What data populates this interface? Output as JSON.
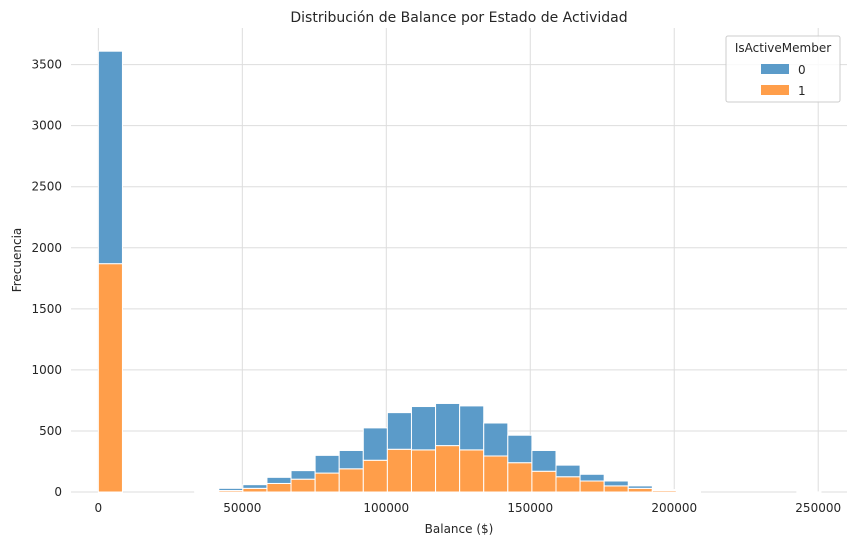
{
  "chart_data": {
    "type": "bar",
    "subtype": "stacked-histogram",
    "title": "Distribución de Balance por Estado de Actividad",
    "xlabel": "Balance ($)",
    "ylabel": "Frecuencia",
    "xlim": [
      -9500,
      260000
    ],
    "ylim": [
      0,
      3800
    ],
    "xticks": [
      0,
      50000,
      100000,
      150000,
      200000,
      250000
    ],
    "xtick_labels": [
      "0",
      "50000",
      "100000",
      "150000",
      "200000",
      "250000"
    ],
    "yticks": [
      0,
      500,
      1000,
      1500,
      2000,
      2500,
      3000,
      3500
    ],
    "ytick_labels": [
      "0",
      "500",
      "1000",
      "1500",
      "2000",
      "2500",
      "3000",
      "3500"
    ],
    "grid": true,
    "legend": {
      "title": "IsActiveMember",
      "position": "top-right"
    },
    "bin_width": 8365,
    "bin_starts": [
      0,
      8365,
      16730,
      25095,
      33460,
      41825,
      50190,
      58555,
      66920,
      75285,
      83650,
      92015,
      100380,
      108745,
      117110,
      125475,
      133840,
      142205,
      150570,
      158935,
      167300,
      175665,
      184030,
      192395,
      200760,
      209125,
      217490,
      225855,
      234220,
      242585
    ],
    "series": [
      {
        "name": "1",
        "color": "#ff9e4a",
        "values": [
          1870,
          0,
          0,
          0,
          5,
          12,
          30,
          70,
          105,
          155,
          190,
          260,
          350,
          345,
          380,
          345,
          295,
          240,
          170,
          125,
          90,
          50,
          30,
          12,
          3,
          0,
          0,
          0,
          0,
          1
        ]
      },
      {
        "name": "0",
        "color": "#5b9bc9",
        "values": [
          1740,
          0,
          0,
          0,
          5,
          18,
          30,
          50,
          70,
          145,
          150,
          265,
          300,
          355,
          345,
          360,
          270,
          225,
          170,
          95,
          55,
          40,
          20,
          8,
          2,
          0,
          0,
          0,
          0,
          0
        ]
      }
    ],
    "legend_order": [
      "0",
      "1"
    ]
  }
}
